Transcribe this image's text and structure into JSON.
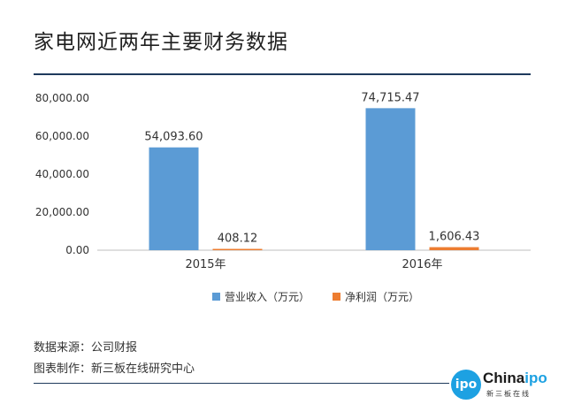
{
  "title": "家电网近两年主要财务数据",
  "source_line": "数据来源：公司财报",
  "maker_line": "图表制作：新三板在线研究中心",
  "logo": {
    "mark": "ipo",
    "name_main": "China",
    "name_accent": "ipo",
    "sub": "新三板在线"
  },
  "chart_data": {
    "type": "bar",
    "categories": [
      "2015年",
      "2016年"
    ],
    "series": [
      {
        "name": "营业收入（万元）",
        "values": [
          54093.6,
          74715.47
        ],
        "labels": [
          "54,093.60",
          "74,715.47"
        ],
        "color": "#5b9bd5"
      },
      {
        "name": "净利润（万元）",
        "values": [
          408.12,
          1606.43
        ],
        "labels": [
          "408.12",
          "1,606.43"
        ],
        "color": "#ed7d31"
      }
    ],
    "yticks": [
      "0.00",
      "20,000.00",
      "40,000.00",
      "60,000.00",
      "80,000.00"
    ],
    "ylim": [
      0,
      80000
    ],
    "grid": false,
    "legend": "bottom"
  }
}
